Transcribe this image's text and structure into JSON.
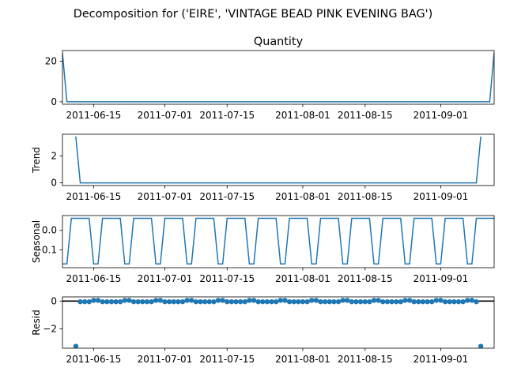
{
  "figure": {
    "suptitle": "Decomposition for ('EIRE', 'VINTAGE BEAD PINK EVENING BAG')"
  },
  "colors": {
    "line": "#1f77b4",
    "axis": "#000000",
    "background": "#ffffff"
  },
  "chart_data": [
    {
      "type": "line",
      "title": "Quantity",
      "ylabel": "",
      "xlabel": "",
      "x_start": "2011-06-08",
      "x_end": "2011-09-13",
      "xlim_days": [
        0,
        97
      ],
      "ylim": [
        -1.2,
        25.2
      ],
      "yticks": [
        0,
        20
      ],
      "xticks": [
        {
          "label": "2011-06-15",
          "day": 7
        },
        {
          "label": "2011-07-01",
          "day": 23
        },
        {
          "label": "2011-07-15",
          "day": 37
        },
        {
          "label": "2011-08-01",
          "day": 54
        },
        {
          "label": "2011-08-15",
          "day": 68
        },
        {
          "label": "2011-09-01",
          "day": 85
        }
      ],
      "series": [
        {
          "name": "Quantity",
          "points": [
            [
              0,
              24
            ],
            [
              1,
              0
            ],
            [
              96,
              0
            ],
            [
              97,
              24
            ]
          ]
        }
      ]
    },
    {
      "type": "line",
      "title": "",
      "ylabel": "Trend",
      "xlabel": "",
      "xlim_days": [
        0,
        97
      ],
      "ylim": [
        -0.2,
        3.6
      ],
      "yticks": [
        0,
        2
      ],
      "xticks": [
        {
          "label": "2011-06-15",
          "day": 7
        },
        {
          "label": "2011-07-01",
          "day": 23
        },
        {
          "label": "2011-07-15",
          "day": 37
        },
        {
          "label": "2011-08-01",
          "day": 54
        },
        {
          "label": "2011-08-15",
          "day": 68
        },
        {
          "label": "2011-09-01",
          "day": 85
        }
      ],
      "series": [
        {
          "name": "Trend",
          "points": [
            [
              3,
              3.43
            ],
            [
              4,
              0
            ],
            [
              93,
              0
            ],
            [
              94,
              3.43
            ]
          ]
        }
      ]
    },
    {
      "type": "line",
      "title": "",
      "ylabel": "Seasonal",
      "xlabel": "",
      "xlim_days": [
        0,
        97
      ],
      "ylim": [
        -0.19,
        0.075
      ],
      "yticks": [
        0.0,
        -0.1
      ],
      "ytick_labels": [
        "0.0",
        "−0.1"
      ],
      "xticks": [
        {
          "label": "2011-06-15",
          "day": 7
        },
        {
          "label": "2011-07-01",
          "day": 23
        },
        {
          "label": "2011-07-15",
          "day": 37
        },
        {
          "label": "2011-08-01",
          "day": 54
        },
        {
          "label": "2011-08-15",
          "day": 68
        },
        {
          "label": "2011-09-01",
          "day": 85
        }
      ],
      "period": 7,
      "pattern": [
        0.061,
        0.061,
        0.061,
        0.061,
        0.061,
        -0.171,
        -0.171
      ],
      "phase_start": 5,
      "series": [
        {
          "name": "Seasonal"
        }
      ]
    },
    {
      "type": "scatter",
      "title": "",
      "ylabel": "Resid",
      "xlabel": "",
      "xlim_days": [
        0,
        97
      ],
      "ylim": [
        -3.4,
        0.3
      ],
      "yticks": [
        0,
        -2
      ],
      "ytick_labels": [
        "0",
        "−2"
      ],
      "xticks": [
        {
          "label": "2011-06-15",
          "day": 7
        },
        {
          "label": "2011-07-01",
          "day": 23
        },
        {
          "label": "2011-07-15",
          "day": 37
        },
        {
          "label": "2011-08-01",
          "day": 54
        },
        {
          "label": "2011-08-15",
          "day": 68
        },
        {
          "label": "2011-09-01",
          "day": 85
        }
      ],
      "baseline": 0,
      "valid_range_days": [
        3,
        94
      ],
      "outliers": [
        {
          "day": 3,
          "value": -3.26
        },
        {
          "day": 94,
          "value": -3.26
        }
      ],
      "peak_value": 0.05,
      "trough_value": -0.05,
      "series": [
        {
          "name": "Resid"
        }
      ]
    }
  ]
}
